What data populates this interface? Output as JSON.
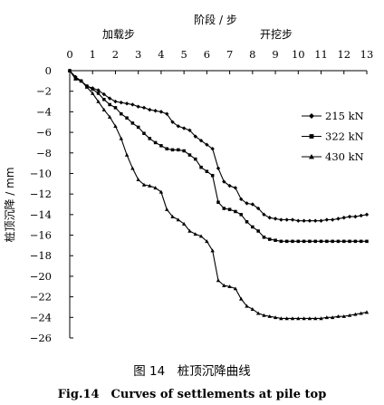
{
  "caption": {
    "cn": "图 14　桩顶沉降曲线",
    "en": "Fig.14　Curves of settlements at pile top"
  },
  "chart_data": {
    "type": "line",
    "xlabel": "阶段 / 步",
    "ylabel": "桩顶沉降 / mm",
    "x_group_labels": [
      "加载步",
      "开挖步"
    ],
    "xlim": [
      0,
      13
    ],
    "ylim": [
      -26,
      0
    ],
    "x_ticks": [
      0,
      1,
      2,
      3,
      4,
      5,
      6,
      7,
      8,
      9,
      10,
      11,
      12,
      13
    ],
    "y_ticks": [
      0,
      -2,
      -4,
      -6,
      -8,
      -10,
      -12,
      -14,
      -16,
      -18,
      -20,
      -22,
      -24,
      -26
    ],
    "x_axis_position": "top",
    "grid": false,
    "legend_position": "top-right",
    "series": [
      {
        "name": "215 kN",
        "marker": "diamond",
        "x": [
          0,
          0.25,
          0.5,
          0.75,
          1,
          1.25,
          1.5,
          1.75,
          2,
          2.25,
          2.5,
          2.75,
          3,
          3.25,
          3.5,
          3.75,
          4,
          4.25,
          4.5,
          4.75,
          5,
          5.25,
          5.5,
          5.75,
          6,
          6.25,
          6.5,
          6.75,
          7,
          7.25,
          7.5,
          7.75,
          8,
          8.25,
          8.5,
          8.75,
          9,
          9.25,
          9.5,
          9.75,
          10,
          10.25,
          10.5,
          10.75,
          11,
          11.25,
          11.5,
          11.75,
          12,
          12.25,
          12.5,
          12.75,
          13
        ],
        "y": [
          0,
          -0.6,
          -1,
          -1.5,
          -1.7,
          -1.9,
          -2.3,
          -2.7,
          -3,
          -3.1,
          -3.2,
          -3.3,
          -3.5,
          -3.6,
          -3.8,
          -3.9,
          -4,
          -4.2,
          -5,
          -5.4,
          -5.6,
          -5.8,
          -6.4,
          -6.8,
          -7.2,
          -7.6,
          -9.5,
          -10.8,
          -11.2,
          -11.4,
          -12.5,
          -12.9,
          -13,
          -13.4,
          -14,
          -14.3,
          -14.4,
          -14.5,
          -14.5,
          -14.5,
          -14.6,
          -14.6,
          -14.6,
          -14.6,
          -14.6,
          -14.5,
          -14.5,
          -14.4,
          -14.3,
          -14.2,
          -14.2,
          -14.1,
          -14
        ]
      },
      {
        "name": "322 kN",
        "marker": "square",
        "x": [
          0,
          0.25,
          0.5,
          0.75,
          1,
          1.25,
          1.5,
          1.75,
          2,
          2.25,
          2.5,
          2.75,
          3,
          3.25,
          3.5,
          3.75,
          4,
          4.25,
          4.5,
          4.75,
          5,
          5.25,
          5.5,
          5.75,
          6,
          6.25,
          6.5,
          6.75,
          7,
          7.25,
          7.5,
          7.75,
          8,
          8.25,
          8.5,
          8.75,
          9,
          9.25,
          9.5,
          9.75,
          10,
          10.25,
          10.5,
          10.75,
          11,
          11.25,
          11.5,
          11.75,
          12,
          12.25,
          12.5,
          12.75,
          13
        ],
        "y": [
          0,
          -0.7,
          -1,
          -1.5,
          -1.8,
          -2.2,
          -2.8,
          -3.3,
          -3.6,
          -4.2,
          -4.6,
          -5.1,
          -5.5,
          -6.1,
          -6.6,
          -7,
          -7.3,
          -7.6,
          -7.7,
          -7.7,
          -7.8,
          -8.2,
          -8.6,
          -9.4,
          -9.8,
          -10.2,
          -12.8,
          -13.4,
          -13.5,
          -13.7,
          -14,
          -14.7,
          -15.2,
          -15.6,
          -16.2,
          -16.4,
          -16.5,
          -16.6,
          -16.6,
          -16.6,
          -16.6,
          -16.6,
          -16.6,
          -16.6,
          -16.6,
          -16.6,
          -16.6,
          -16.6,
          -16.6,
          -16.6,
          -16.6,
          -16.6,
          -16.6
        ]
      },
      {
        "name": "430 kN",
        "marker": "triangle",
        "x": [
          0,
          0.25,
          0.5,
          0.75,
          1,
          1.25,
          1.5,
          1.75,
          2,
          2.25,
          2.5,
          2.75,
          3,
          3.25,
          3.5,
          3.75,
          4,
          4.25,
          4.5,
          4.75,
          5,
          5.25,
          5.5,
          5.75,
          6,
          6.25,
          6.5,
          6.75,
          7,
          7.25,
          7.5,
          7.75,
          8,
          8.25,
          8.5,
          8.75,
          9,
          9.25,
          9.5,
          9.75,
          10,
          10.25,
          10.5,
          10.75,
          11,
          11.25,
          11.5,
          11.75,
          12,
          12.25,
          12.5,
          12.75,
          13
        ],
        "y": [
          0,
          -0.8,
          -1,
          -1.6,
          -2.2,
          -3,
          -3.8,
          -4.5,
          -5.4,
          -6.6,
          -8.2,
          -9.5,
          -10.6,
          -11.1,
          -11.2,
          -11.4,
          -11.8,
          -13.5,
          -14.2,
          -14.5,
          -14.9,
          -15.6,
          -15.9,
          -16.1,
          -16.6,
          -17.5,
          -20.4,
          -20.9,
          -21,
          -21.2,
          -22.2,
          -22.9,
          -23.2,
          -23.6,
          -23.8,
          -23.9,
          -24,
          -24.1,
          -24.1,
          -24.1,
          -24.1,
          -24.1,
          -24.1,
          -24.1,
          -24.1,
          -24,
          -24,
          -23.9,
          -23.9,
          -23.8,
          -23.7,
          -23.6,
          -23.5
        ]
      }
    ]
  }
}
